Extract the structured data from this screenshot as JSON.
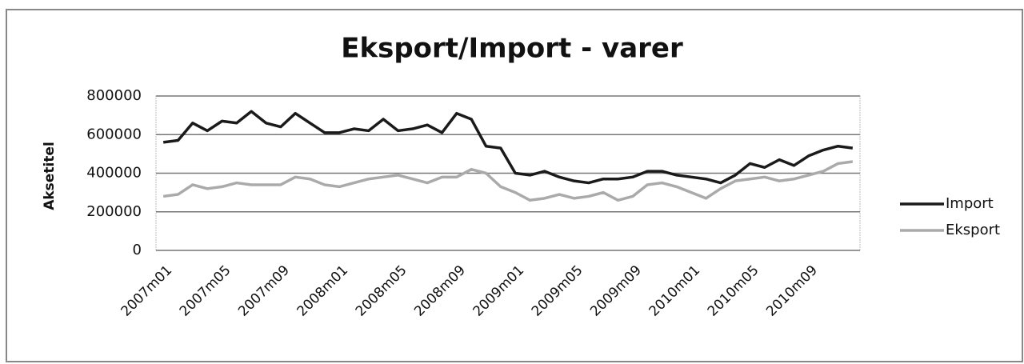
{
  "chart_data": {
    "type": "line",
    "title": "Eksport/Import - varer",
    "y_label": "Aksetitel",
    "categories": [
      "2007m01",
      null,
      null,
      null,
      "2007m05",
      null,
      null,
      null,
      "2007m09",
      null,
      null,
      null,
      "2008m01",
      null,
      null,
      null,
      "2008m05",
      null,
      null,
      null,
      "2008m09",
      null,
      null,
      null,
      "2009m01",
      null,
      null,
      null,
      "2009m05",
      null,
      null,
      null,
      "2009m09",
      null,
      null,
      null,
      "2010m01",
      null,
      null,
      null,
      "2010m05",
      null,
      null,
      null,
      "2010m09",
      null,
      null,
      null
    ],
    "series": [
      {
        "name": "Import",
        "color": "#1a1a1a",
        "values": [
          560000,
          570000,
          660000,
          620000,
          670000,
          660000,
          720000,
          660000,
          640000,
          710000,
          660000,
          610000,
          610000,
          630000,
          620000,
          680000,
          620000,
          630000,
          650000,
          610000,
          710000,
          680000,
          540000,
          530000,
          400000,
          390000,
          410000,
          380000,
          360000,
          350000,
          370000,
          370000,
          380000,
          410000,
          410000,
          390000,
          380000,
          370000,
          350000,
          390000,
          450000,
          430000,
          470000,
          440000,
          490000,
          520000,
          540000,
          530000
        ]
      },
      {
        "name": "Eksport",
        "color": "#aaaaaa",
        "values": [
          280000,
          290000,
          340000,
          320000,
          330000,
          350000,
          340000,
          340000,
          340000,
          380000,
          370000,
          340000,
          330000,
          350000,
          370000,
          380000,
          390000,
          370000,
          350000,
          380000,
          380000,
          420000,
          400000,
          330000,
          300000,
          260000,
          270000,
          290000,
          270000,
          280000,
          300000,
          260000,
          280000,
          340000,
          350000,
          330000,
          300000,
          270000,
          320000,
          360000,
          370000,
          380000,
          360000,
          370000,
          390000,
          410000,
          450000,
          460000
        ]
      }
    ],
    "ylim": [
      0,
      800000
    ],
    "yticks": [
      0,
      200000,
      400000,
      600000,
      800000
    ],
    "grid": true,
    "legend": "right"
  }
}
